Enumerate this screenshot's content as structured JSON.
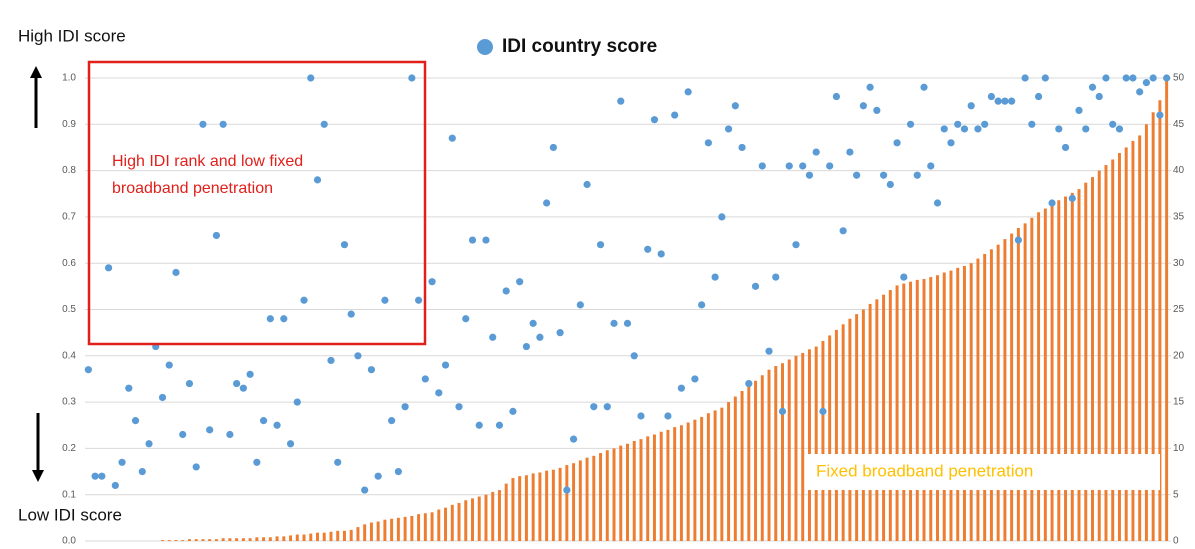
{
  "chart_data": {
    "type": "combo",
    "legend": "top",
    "grid": true,
    "ylim": [
      0,
      1
    ],
    "yticks": [
      {
        "value": 0,
        "label": "0.0"
      },
      0.1,
      0.2,
      0.3,
      0.4,
      0.5,
      0.6,
      0.7,
      0.8,
      0.9,
      {
        "value": 1,
        "label": "1.0"
      }
    ],
    "y2lim": [
      0,
      50
    ],
    "y2ticks": [
      0,
      5,
      10,
      15,
      20,
      25,
      30,
      35,
      40,
      45,
      50
    ],
    "annotations": [
      "High IDI score",
      "Low IDI score",
      "High IDI rank and low fixed broadband penetration"
    ],
    "categories": [
      null,
      null,
      null,
      null,
      null,
      null,
      null,
      null,
      null,
      null,
      null,
      null,
      null,
      null,
      null,
      null,
      null,
      null,
      null,
      null,
      null,
      null,
      null,
      null,
      null,
      null,
      null,
      null,
      null,
      null,
      null,
      null,
      null,
      null,
      null,
      null,
      null,
      null,
      null,
      null,
      null,
      null,
      null,
      null,
      null,
      null,
      null,
      null,
      null,
      null,
      null,
      null,
      null,
      null,
      null,
      null,
      null,
      null,
      null,
      null,
      null,
      null,
      null,
      null,
      null,
      null,
      null,
      null,
      null,
      null,
      null,
      null,
      null,
      null,
      null,
      null,
      null,
      null,
      null,
      null,
      null,
      null,
      null,
      null,
      null,
      null,
      null,
      null,
      null,
      null,
      null,
      null,
      null,
      null,
      null,
      null,
      null,
      null,
      null,
      null,
      null,
      null,
      null,
      null,
      null,
      null,
      null,
      null,
      null,
      null,
      null,
      null,
      null,
      null,
      null,
      null,
      null,
      null,
      null,
      null,
      null,
      null,
      null,
      null,
      null,
      null,
      null,
      null,
      null,
      null,
      null,
      null,
      null,
      null,
      null,
      null,
      null,
      null,
      null,
      null,
      null,
      null,
      null,
      null,
      null,
      null,
      null,
      null,
      null,
      null,
      null,
      null,
      null,
      null,
      null,
      null,
      null,
      null,
      null,
      null,
      null
    ],
    "series": [
      {
        "name": "IDI country score",
        "type": "scatter",
        "color": "#5b9bd5",
        "values": [
          0.37,
          0.14,
          0.14,
          0.59,
          0.12,
          0.17,
          0.33,
          0.26,
          0.15,
          0.21,
          0.42,
          0.31,
          0.38,
          0.58,
          0.23,
          0.34,
          0.16,
          0.9,
          0.24,
          0.66,
          0.9,
          0.23,
          0.34,
          0.33,
          0.36,
          0.17,
          0.26,
          0.48,
          0.25,
          0.48,
          0.21,
          0.3,
          0.52,
          1,
          0.78,
          0.9,
          0.39,
          0.17,
          0.64,
          0.49,
          0.4,
          0.11,
          0.37,
          0.14,
          0.52,
          0.26,
          0.15,
          0.29,
          1,
          0.52,
          0.35,
          0.56,
          0.32,
          0.38,
          0.87,
          0.29,
          0.48,
          0.65,
          0.25,
          0.65,
          0.44,
          0.25,
          0.54,
          0.28,
          0.56,
          0.42,
          0.47,
          0.44,
          0.73,
          0.85,
          0.45,
          0.11,
          0.22,
          0.51,
          0.77,
          0.29,
          0.64,
          0.29,
          0.47,
          0.95,
          0.47,
          0.4,
          0.27,
          0.63,
          0.91,
          0.62,
          0.27,
          0.92,
          0.33,
          0.97,
          0.35,
          0.51,
          0.86,
          0.57,
          0.7,
          0.89,
          0.94,
          0.85,
          0.34,
          0.55,
          0.81,
          0.41,
          0.57,
          0.28,
          0.81,
          0.64,
          0.81,
          0.79,
          0.84,
          0.28,
          0.81,
          0.96,
          0.67,
          0.84,
          0.79,
          0.94,
          0.98,
          0.93,
          0.79,
          0.77,
          0.86,
          0.57,
          0.9,
          0.79,
          0.98,
          0.81,
          0.73,
          0.89,
          0.86,
          0.9,
          0.89,
          0.94,
          0.89,
          0.9,
          0.96,
          0.95,
          0.95,
          0.95,
          0.65,
          1,
          0.9,
          0.96,
          1,
          0.73,
          0.89,
          0.85,
          0.74,
          0.93,
          0.89,
          0.98,
          0.96,
          1,
          0.9,
          0.89,
          1,
          1,
          0.97,
          0.99,
          1,
          0.92,
          1
        ]
      },
      {
        "name": "Fixed broadband penetration",
        "type": "bar",
        "axis": "y2",
        "color": "#ed7d31",
        "values": [
          0,
          0,
          0,
          0,
          0,
          0,
          0,
          0,
          0,
          0,
          0,
          0.1,
          0.1,
          0.1,
          0.1,
          0.2,
          0.2,
          0.2,
          0.2,
          0.2,
          0.3,
          0.3,
          0.3,
          0.3,
          0.3,
          0.4,
          0.4,
          0.4,
          0.5,
          0.5,
          0.6,
          0.7,
          0.7,
          0.8,
          0.9,
          0.9,
          1.0,
          1.1,
          1.1,
          1.2,
          1.5,
          1.8,
          2.0,
          2.1,
          2.3,
          2.4,
          2.5,
          2.6,
          2.7,
          2.9,
          3.0,
          3.1,
          3.4,
          3.6,
          3.9,
          4.1,
          4.4,
          4.6,
          4.8,
          5.0,
          5.3,
          5.5,
          6.2,
          6.8,
          7.0,
          7.1,
          7.3,
          7.4,
          7.6,
          7.7,
          7.9,
          8.2,
          8.4,
          8.7,
          9.0,
          9.2,
          9.5,
          9.8,
          10.0,
          10.3,
          10.5,
          10.8,
          11.0,
          11.3,
          11.5,
          11.8,
          12.0,
          12.3,
          12.5,
          12.8,
          13.1,
          13.4,
          13.8,
          14.1,
          14.4,
          15.0,
          15.6,
          16.2,
          16.7,
          17.3,
          17.9,
          18.5,
          18.9,
          19.2,
          19.6,
          20.0,
          20.3,
          20.7,
          21.0,
          21.6,
          22.2,
          22.8,
          23.4,
          24.0,
          24.5,
          25.0,
          25.6,
          26.1,
          26.6,
          27.1,
          27.6,
          27.8,
          28.0,
          28.2,
          28.3,
          28.5,
          28.7,
          29.0,
          29.2,
          29.5,
          29.7,
          30.0,
          30.5,
          31.0,
          31.5,
          32.0,
          32.6,
          33.2,
          33.8,
          34.3,
          34.9,
          35.5,
          35.9,
          36.3,
          36.8,
          37.2,
          37.6,
          38.0,
          38.7,
          39.3,
          40.0,
          40.6,
          41.2,
          41.9,
          42.5,
          43.2,
          43.8,
          45.0,
          46.3,
          47.6,
          49.8
        ]
      }
    ]
  }
}
